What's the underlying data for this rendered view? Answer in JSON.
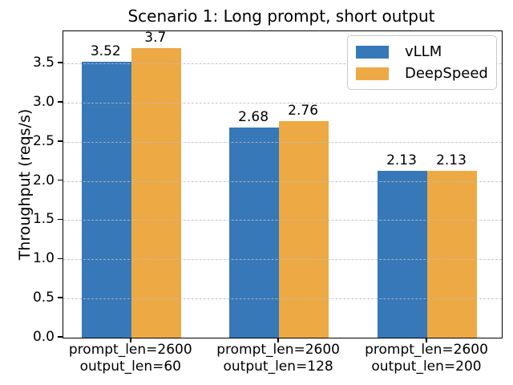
{
  "chart_data": {
    "type": "bar",
    "title": "Scenario 1: Long prompt, short output",
    "ylabel": "Throughput (reqs/s)",
    "xlabel": "",
    "categories": [
      [
        "prompt_len=2600",
        "output_len=60"
      ],
      [
        "prompt_len=2600",
        "output_len=128"
      ],
      [
        "prompt_len=2600",
        "output_len=200"
      ]
    ],
    "series": [
      {
        "name": "vLLM",
        "color": "#3778b8",
        "values": [
          3.52,
          2.68,
          2.13
        ],
        "labels": [
          "3.52",
          "2.68",
          "2.13"
        ]
      },
      {
        "name": "DeepSpeed",
        "color": "#edaa44",
        "values": [
          3.7,
          2.76,
          2.13
        ],
        "labels": [
          "3.7",
          "2.76",
          "2.13"
        ]
      }
    ],
    "ytick_labels": [
      "0.0",
      "0.5",
      "1.0",
      "1.5",
      "2.0",
      "2.5",
      "3.0",
      "3.5"
    ],
    "ytick_values": [
      0,
      0.5,
      1,
      1.5,
      2,
      2.5,
      3,
      3.5
    ],
    "ylim": [
      0,
      3.91
    ],
    "grid": {
      "axis": "y",
      "style": "dashed",
      "color": "#bcbcbc",
      "drawn_over_bars": true
    },
    "legend": {
      "position": "upper right"
    },
    "bar_value_labels": true
  }
}
